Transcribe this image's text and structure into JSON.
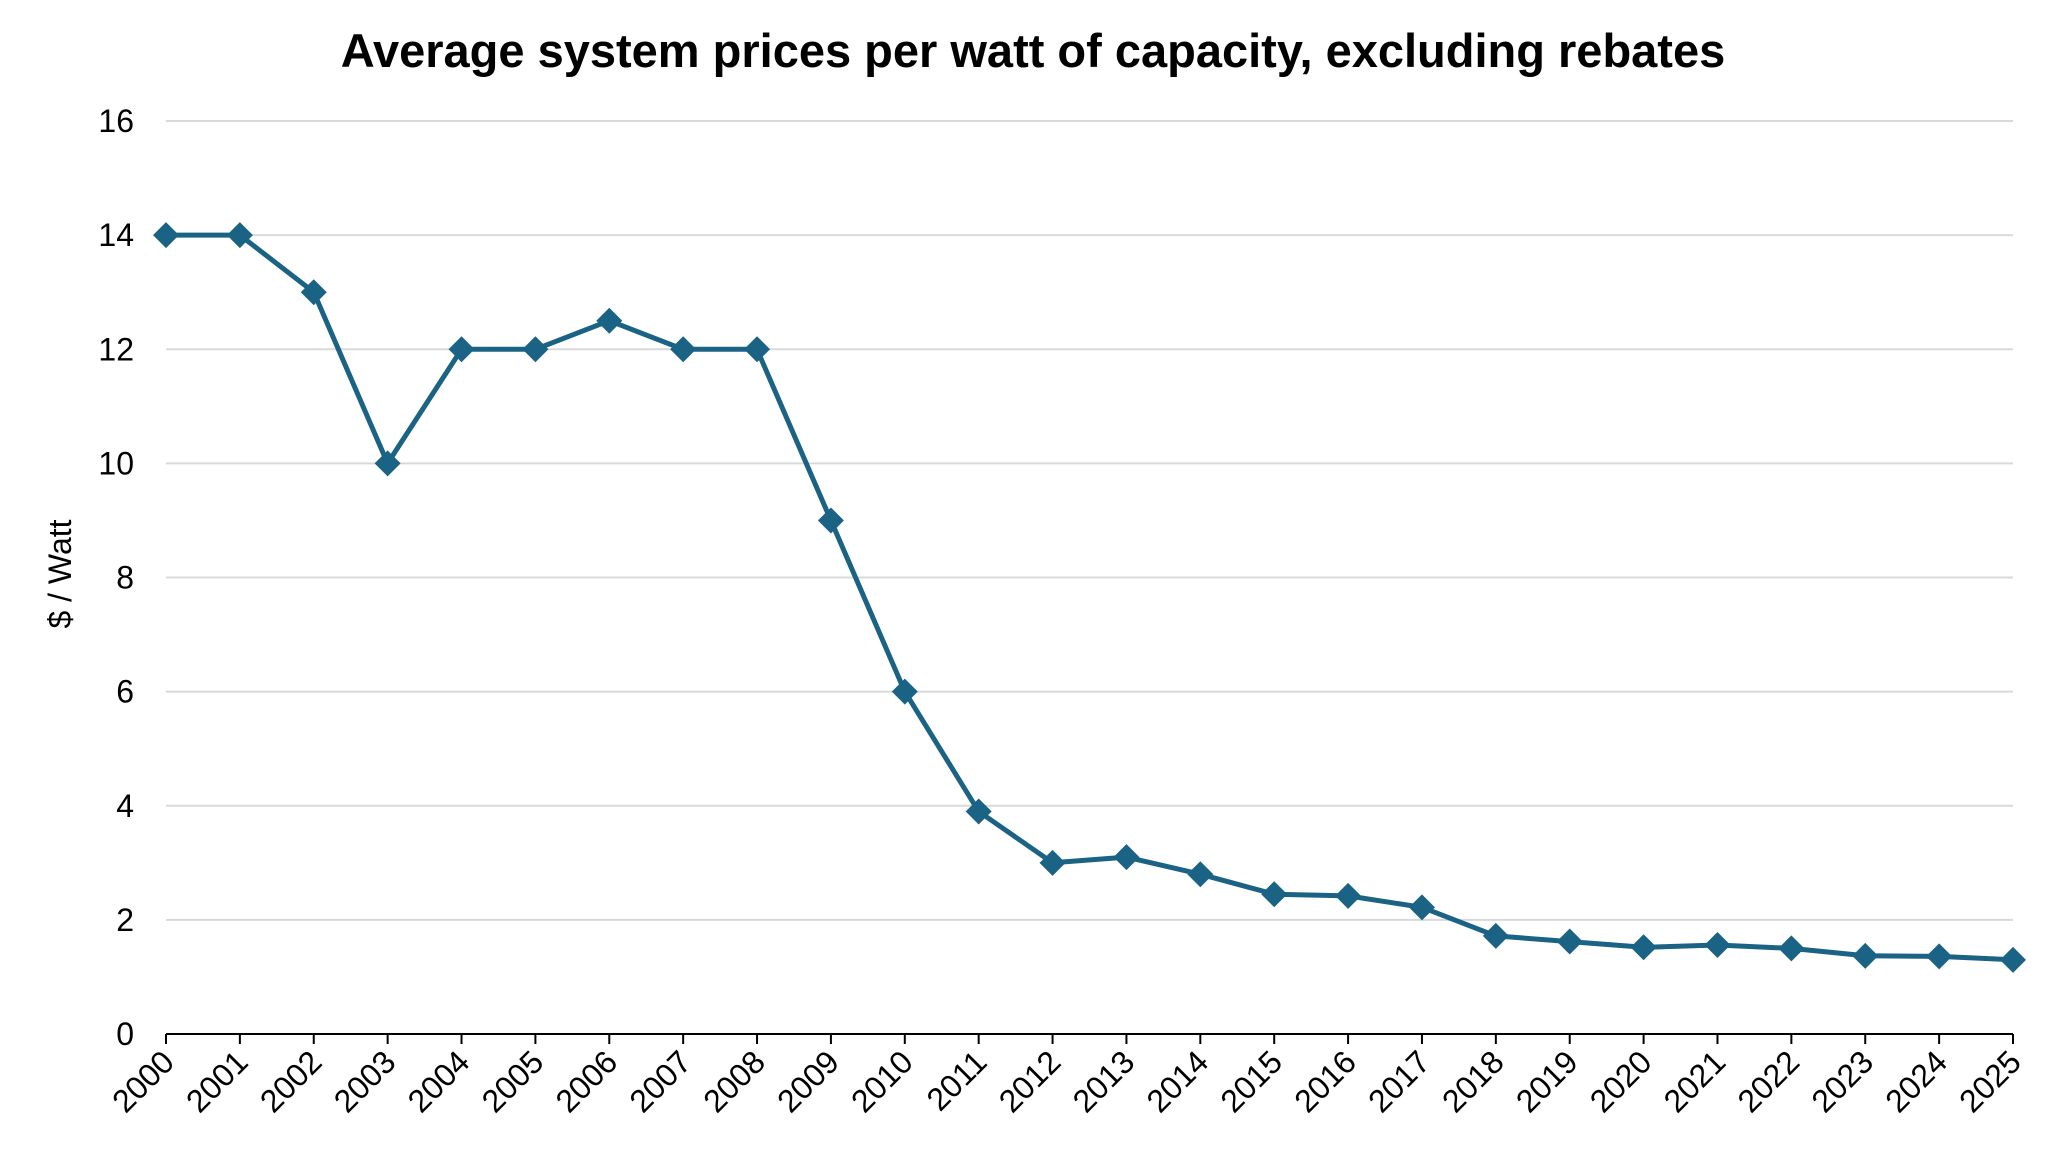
{
  "chart_data": {
    "type": "line",
    "title": "Average system prices per watt of capacity, excluding rebates",
    "xlabel": "",
    "ylabel": "$ / Watt",
    "ylim": [
      0,
      16
    ],
    "yticks": [
      0,
      2,
      4,
      6,
      8,
      10,
      12,
      14,
      16
    ],
    "grid": true,
    "legend": "none",
    "marker": "diamond",
    "color": "#1B6385",
    "gridColor": "#D9D9D9",
    "categories": [
      "2000",
      "2001",
      "2002",
      "2003",
      "2004",
      "2005",
      "2006",
      "2007",
      "2008",
      "2009",
      "2010",
      "2011",
      "2012",
      "2013",
      "2014",
      "2015",
      "2016",
      "2017",
      "2018",
      "2019",
      "2020",
      "2021",
      "2022",
      "2023",
      "2024",
      "2025"
    ],
    "series": [
      {
        "values": [
          14.0,
          14.0,
          13.0,
          10.0,
          12.0,
          12.0,
          12.5,
          12.0,
          12.0,
          9.0,
          6.0,
          3.9,
          3.0,
          3.1,
          2.8,
          2.45,
          2.42,
          2.22,
          1.72,
          1.62,
          1.52,
          1.56,
          1.5,
          1.37,
          1.36,
          1.3
        ]
      }
    ]
  }
}
